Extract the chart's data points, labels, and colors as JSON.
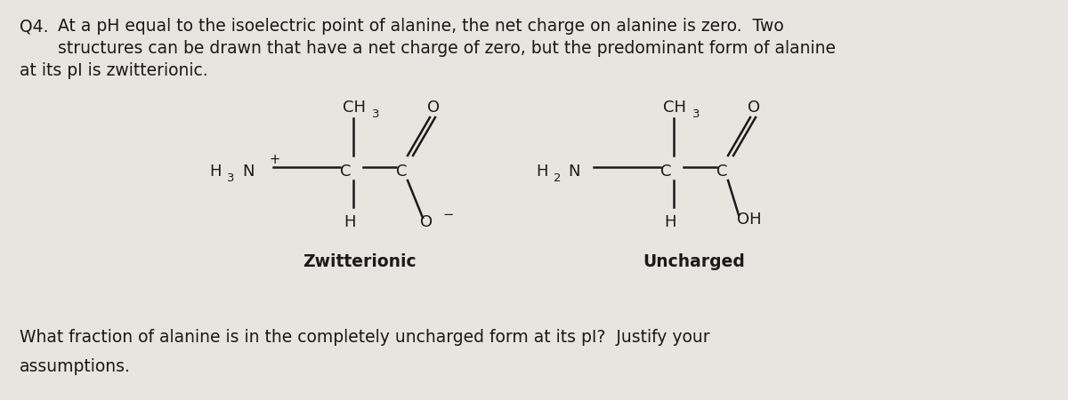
{
  "background_color": "#e8e4e0",
  "fig_width": 12.0,
  "fig_height": 4.5,
  "text_color": "#1a1a1a",
  "label_zwitterionic": "Zwitterionic",
  "label_uncharged": "Uncharged",
  "body_fontsize": 13.5,
  "chem_fontsize": 13.0,
  "sub_fontsize": 9.5,
  "label_fontsize": 13.5,
  "line1": "Q4.  At a pH equal to the isoelectric point of alanine, the net charge on alanine is zero.  Two",
  "line2": "structures can be drawn that have a net charge of zero, but the predominant form of alanine",
  "line3": "at its pI is zwitterionic.",
  "q4_prefix": "Q4.",
  "bottom_line1": "What fraction of alanine is in the completely uncharged form at its pI?  Justify your",
  "bottom_line2": "assumptions."
}
